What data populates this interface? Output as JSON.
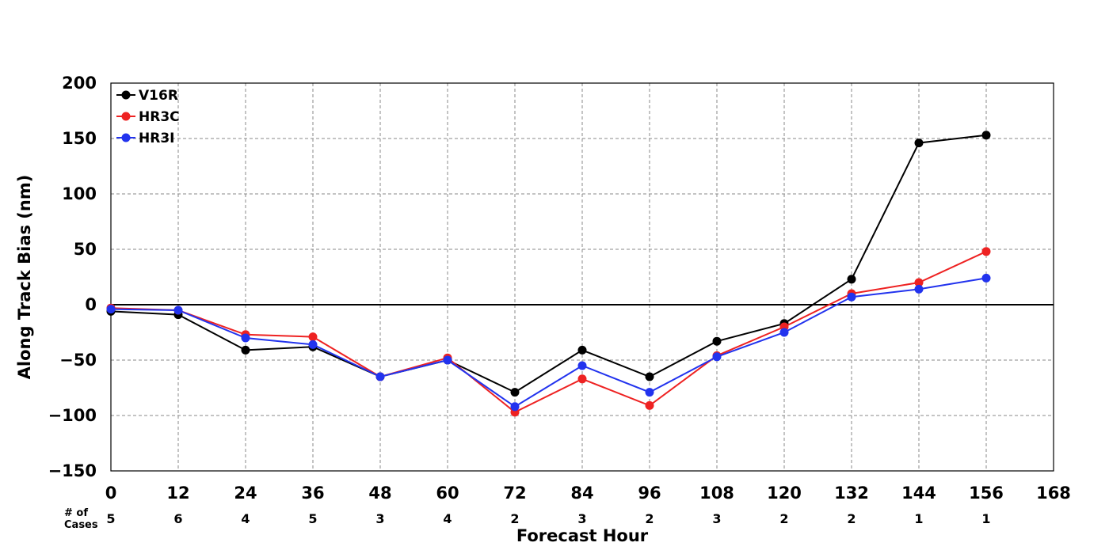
{
  "chart_data": {
    "type": "line",
    "title": "",
    "xlabel": "Forecast Hour",
    "ylabel": "Along Track Bias (nm)",
    "xlim": [
      0,
      168
    ],
    "ylim": [
      -150,
      200
    ],
    "xticks": [
      "0",
      "12",
      "24",
      "36",
      "48",
      "60",
      "72",
      "84",
      "96",
      "108",
      "120",
      "132",
      "144",
      "156",
      "168"
    ],
    "yticks": [
      "200",
      "150",
      "100",
      "50",
      "0",
      "−50",
      "−100",
      "−150"
    ],
    "ytick_values": [
      200,
      150,
      100,
      50,
      0,
      -50,
      -100,
      -150
    ],
    "grid": true,
    "legend_position": "top-left",
    "x": [
      0,
      12,
      24,
      36,
      48,
      60,
      72,
      84,
      96,
      108,
      120,
      132,
      144,
      156
    ],
    "series": [
      {
        "name": "V16R",
        "color": "#000000",
        "values": [
          -6,
          -9,
          -41,
          -38,
          -65,
          -50,
          -79,
          -41,
          -65,
          -33,
          -17,
          23,
          146,
          153
        ]
      },
      {
        "name": "HR3C",
        "color": "#ee2222",
        "values": [
          -3,
          -5,
          -27,
          -29,
          -65,
          -48,
          -97,
          -67,
          -91,
          -46,
          -20,
          10,
          20,
          48
        ]
      },
      {
        "name": "HR3I",
        "color": "#2233ee",
        "values": [
          -4,
          -5,
          -30,
          -36,
          -65,
          -50,
          -92,
          -55,
          -79,
          -47,
          -25,
          7,
          14,
          24
        ]
      }
    ],
    "cases_label_lines": [
      "# of",
      "Cases"
    ],
    "cases": [
      "5",
      "6",
      "4",
      "5",
      "3",
      "4",
      "2",
      "3",
      "2",
      "3",
      "2",
      "2",
      "1",
      "1"
    ]
  }
}
